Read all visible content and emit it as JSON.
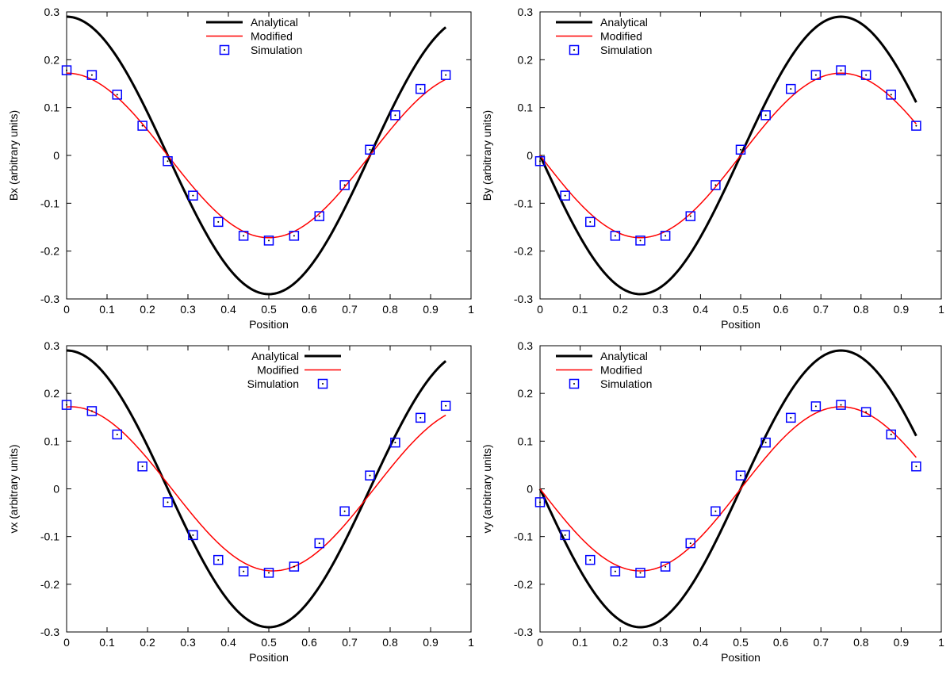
{
  "chart_data": [
    {
      "type": "line",
      "xlabel": "Position",
      "ylabel": "Bx (arbitrary units)",
      "xlim": [
        0,
        1
      ],
      "ylim": [
        -0.3,
        0.3
      ],
      "xticks": [
        "0",
        "0.1",
        "0.2",
        "0.3",
        "0.4",
        "0.5",
        "0.6",
        "0.7",
        "0.8",
        "0.9",
        "1"
      ],
      "yticks": [
        "-0.3",
        "-0.2",
        "-0.1",
        "0",
        "0.1",
        "0.2",
        "0.3"
      ],
      "grid": false,
      "legend_position": "top-center",
      "legend_style": "line-first",
      "series": [
        {
          "name": "Analytical",
          "style": "line",
          "color": "#000000",
          "function": "0.29*cos(2*pi*x)",
          "x_range": [
            0,
            0.9375
          ]
        },
        {
          "name": "Modified",
          "style": "line",
          "color": "#ff0000",
          "function": "0.172*cos(2*pi*x)",
          "x_range": [
            0,
            0.9375
          ]
        },
        {
          "name": "Simulation",
          "style": "square-markers",
          "color": "#0000ff",
          "x": [
            0,
            0.0625,
            0.125,
            0.1875,
            0.25,
            0.3125,
            0.375,
            0.4375,
            0.5,
            0.5625,
            0.625,
            0.6875,
            0.75,
            0.8125,
            0.875,
            0.9375
          ],
          "y": [
            0.178,
            0.168,
            0.127,
            0.062,
            -0.012,
            -0.084,
            -0.139,
            -0.168,
            -0.178,
            -0.168,
            -0.127,
            -0.062,
            0.012,
            0.084,
            0.139,
            0.168
          ]
        }
      ]
    },
    {
      "type": "line",
      "xlabel": "Position",
      "ylabel": "By (arbitrary units)",
      "xlim": [
        0,
        1
      ],
      "ylim": [
        -0.3,
        0.3
      ],
      "xticks": [
        "0",
        "0.1",
        "0.2",
        "0.3",
        "0.4",
        "0.5",
        "0.6",
        "0.7",
        "0.8",
        "0.9",
        "1"
      ],
      "yticks": [
        "-0.3",
        "-0.2",
        "-0.1",
        "0",
        "0.1",
        "0.2",
        "0.3"
      ],
      "grid": false,
      "legend_position": "top-left",
      "legend_style": "line-first",
      "series": [
        {
          "name": "Analytical",
          "style": "line",
          "color": "#000000",
          "function": "-0.29*sin(2*pi*x)",
          "x_range": [
            0,
            0.9375
          ]
        },
        {
          "name": "Modified",
          "style": "line",
          "color": "#ff0000",
          "function": "-0.172*sin(2*pi*x)",
          "x_range": [
            0,
            0.9375
          ]
        },
        {
          "name": "Simulation",
          "style": "square-markers",
          "color": "#0000ff",
          "x": [
            0,
            0.0625,
            0.125,
            0.1875,
            0.25,
            0.3125,
            0.375,
            0.4375,
            0.5,
            0.5625,
            0.625,
            0.6875,
            0.75,
            0.8125,
            0.875,
            0.9375
          ],
          "y": [
            -0.012,
            -0.084,
            -0.139,
            -0.168,
            -0.178,
            -0.168,
            -0.127,
            -0.062,
            0.012,
            0.084,
            0.139,
            0.168,
            0.178,
            0.168,
            0.127,
            0.062
          ]
        }
      ]
    },
    {
      "type": "line",
      "xlabel": "Position",
      "ylabel": "vx (arbitrary units)",
      "xlim": [
        0,
        1
      ],
      "ylim": [
        -0.3,
        0.3
      ],
      "xticks": [
        "0",
        "0.1",
        "0.2",
        "0.3",
        "0.4",
        "0.5",
        "0.6",
        "0.7",
        "0.8",
        "0.9",
        "1"
      ],
      "yticks": [
        "-0.3",
        "-0.2",
        "-0.1",
        "0",
        "0.1",
        "0.2",
        "0.3"
      ],
      "grid": false,
      "legend_position": "top-center",
      "legend_style": "text-first",
      "series": [
        {
          "name": "Analytical",
          "style": "line",
          "color": "#000000",
          "function": "0.29*cos(2*pi*x)",
          "x_range": [
            0,
            0.9375
          ]
        },
        {
          "name": "Modified",
          "style": "line",
          "color": "#ff0000",
          "function": "0.172*cos(2*pi*(x-0.01))",
          "x_range": [
            0,
            0.9375
          ]
        },
        {
          "name": "Simulation",
          "style": "square-markers",
          "color": "#0000ff",
          "x": [
            0,
            0.0625,
            0.125,
            0.1875,
            0.25,
            0.3125,
            0.375,
            0.4375,
            0.5,
            0.5625,
            0.625,
            0.6875,
            0.75,
            0.8125,
            0.875,
            0.9375
          ],
          "y": [
            0.176,
            0.163,
            0.114,
            0.047,
            -0.028,
            -0.097,
            -0.149,
            -0.173,
            -0.176,
            -0.163,
            -0.114,
            -0.047,
            0.028,
            0.097,
            0.149,
            0.174
          ]
        }
      ]
    },
    {
      "type": "line",
      "xlabel": "Position",
      "ylabel": "vy (arbitrary units)",
      "xlim": [
        0,
        1
      ],
      "ylim": [
        -0.3,
        0.3
      ],
      "xticks": [
        "0",
        "0.1",
        "0.2",
        "0.3",
        "0.4",
        "0.5",
        "0.6",
        "0.7",
        "0.8",
        "0.9",
        "1"
      ],
      "yticks": [
        "-0.3",
        "-0.2",
        "-0.1",
        "0",
        "0.1",
        "0.2",
        "0.3"
      ],
      "grid": false,
      "legend_position": "top-left",
      "legend_style": "line-first",
      "series": [
        {
          "name": "Analytical",
          "style": "line",
          "color": "#000000",
          "function": "-0.29*sin(2*pi*x)",
          "x_range": [
            0,
            0.9375
          ]
        },
        {
          "name": "Modified",
          "style": "line",
          "color": "#ff0000",
          "function": "-0.172*sin(2*pi*x)",
          "x_range": [
            0,
            0.9375
          ]
        },
        {
          "name": "Simulation",
          "style": "square-markers",
          "color": "#0000ff",
          "x": [
            0,
            0.0625,
            0.125,
            0.1875,
            0.25,
            0.3125,
            0.375,
            0.4375,
            0.5,
            0.5625,
            0.625,
            0.6875,
            0.75,
            0.8125,
            0.875,
            0.9375
          ],
          "y": [
            -0.028,
            -0.097,
            -0.149,
            -0.173,
            -0.176,
            -0.163,
            -0.114,
            -0.047,
            0.028,
            0.097,
            0.149,
            0.173,
            0.176,
            0.161,
            0.114,
            0.047
          ]
        }
      ]
    }
  ]
}
